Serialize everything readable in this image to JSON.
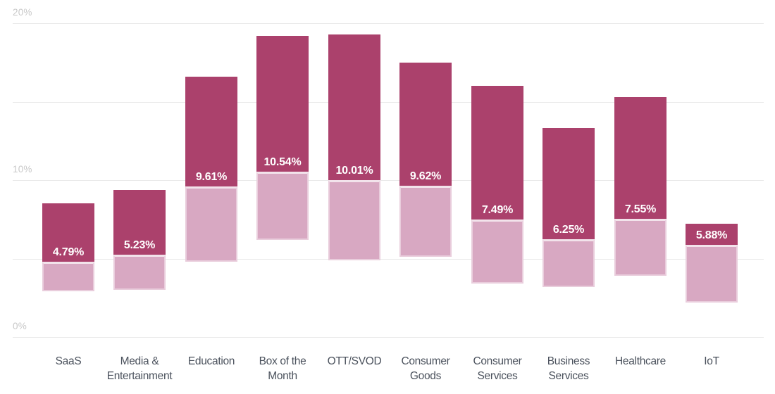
{
  "chart_data": {
    "type": "bar",
    "subtype": "floating-range-with-average-split",
    "title": "",
    "xlabel": "",
    "ylabel": "",
    "ylim": [
      0,
      20
    ],
    "grid": true,
    "legend": "none",
    "yticks": [
      {
        "value": 0,
        "label": "0%"
      },
      {
        "value": 5,
        "label": ""
      },
      {
        "value": 10,
        "label": "10%"
      },
      {
        "value": 15,
        "label": ""
      },
      {
        "value": 20,
        "label": "20%"
      }
    ],
    "categories": [
      {
        "slug": "saas",
        "lines": [
          "SaaS"
        ],
        "min": 2.9,
        "avg": 4.79,
        "max": 8.5,
        "value_label": "4.79%"
      },
      {
        "slug": "media-entertainment",
        "lines": [
          "Media &",
          "Entertainment"
        ],
        "min": 3.0,
        "avg": 5.23,
        "max": 9.35,
        "value_label": "5.23%"
      },
      {
        "slug": "education",
        "lines": [
          "Education"
        ],
        "min": 4.8,
        "avg": 9.61,
        "max": 16.6,
        "value_label": "9.61%"
      },
      {
        "slug": "box-of-the-month",
        "lines": [
          "Box of the",
          "Month"
        ],
        "min": 6.2,
        "avg": 10.54,
        "max": 19.2,
        "value_label": "10.54%"
      },
      {
        "slug": "ott-svod",
        "lines": [
          "OTT/SVOD"
        ],
        "min": 4.9,
        "avg": 10.01,
        "max": 19.3,
        "value_label": "10.01%"
      },
      {
        "slug": "consumer-goods",
        "lines": [
          "Consumer",
          "Goods"
        ],
        "min": 5.1,
        "avg": 9.62,
        "max": 17.5,
        "value_label": "9.62%"
      },
      {
        "slug": "consumer-services",
        "lines": [
          "Consumer",
          "Services"
        ],
        "min": 3.4,
        "avg": 7.49,
        "max": 16.0,
        "value_label": "7.49%"
      },
      {
        "slug": "business-services",
        "lines": [
          "Business",
          "Services"
        ],
        "min": 3.2,
        "avg": 6.25,
        "max": 13.3,
        "value_label": "6.25%"
      },
      {
        "slug": "healthcare",
        "lines": [
          "Healthcare"
        ],
        "min": 3.9,
        "avg": 7.55,
        "max": 15.3,
        "value_label": "7.55%"
      },
      {
        "slug": "iot",
        "lines": [
          "IoT"
        ],
        "min": 2.2,
        "avg": 5.88,
        "max": 7.2,
        "value_label": "5.88%"
      }
    ],
    "colors": {
      "upper_segment": "#ab416c",
      "lower_segment": "#d8a8c2",
      "value_label_text": "#ffffff",
      "gridline": "#e9e9e9",
      "tick_label": "#c8c8c8",
      "category_label": "#4a515c",
      "background": "#ffffff"
    }
  }
}
